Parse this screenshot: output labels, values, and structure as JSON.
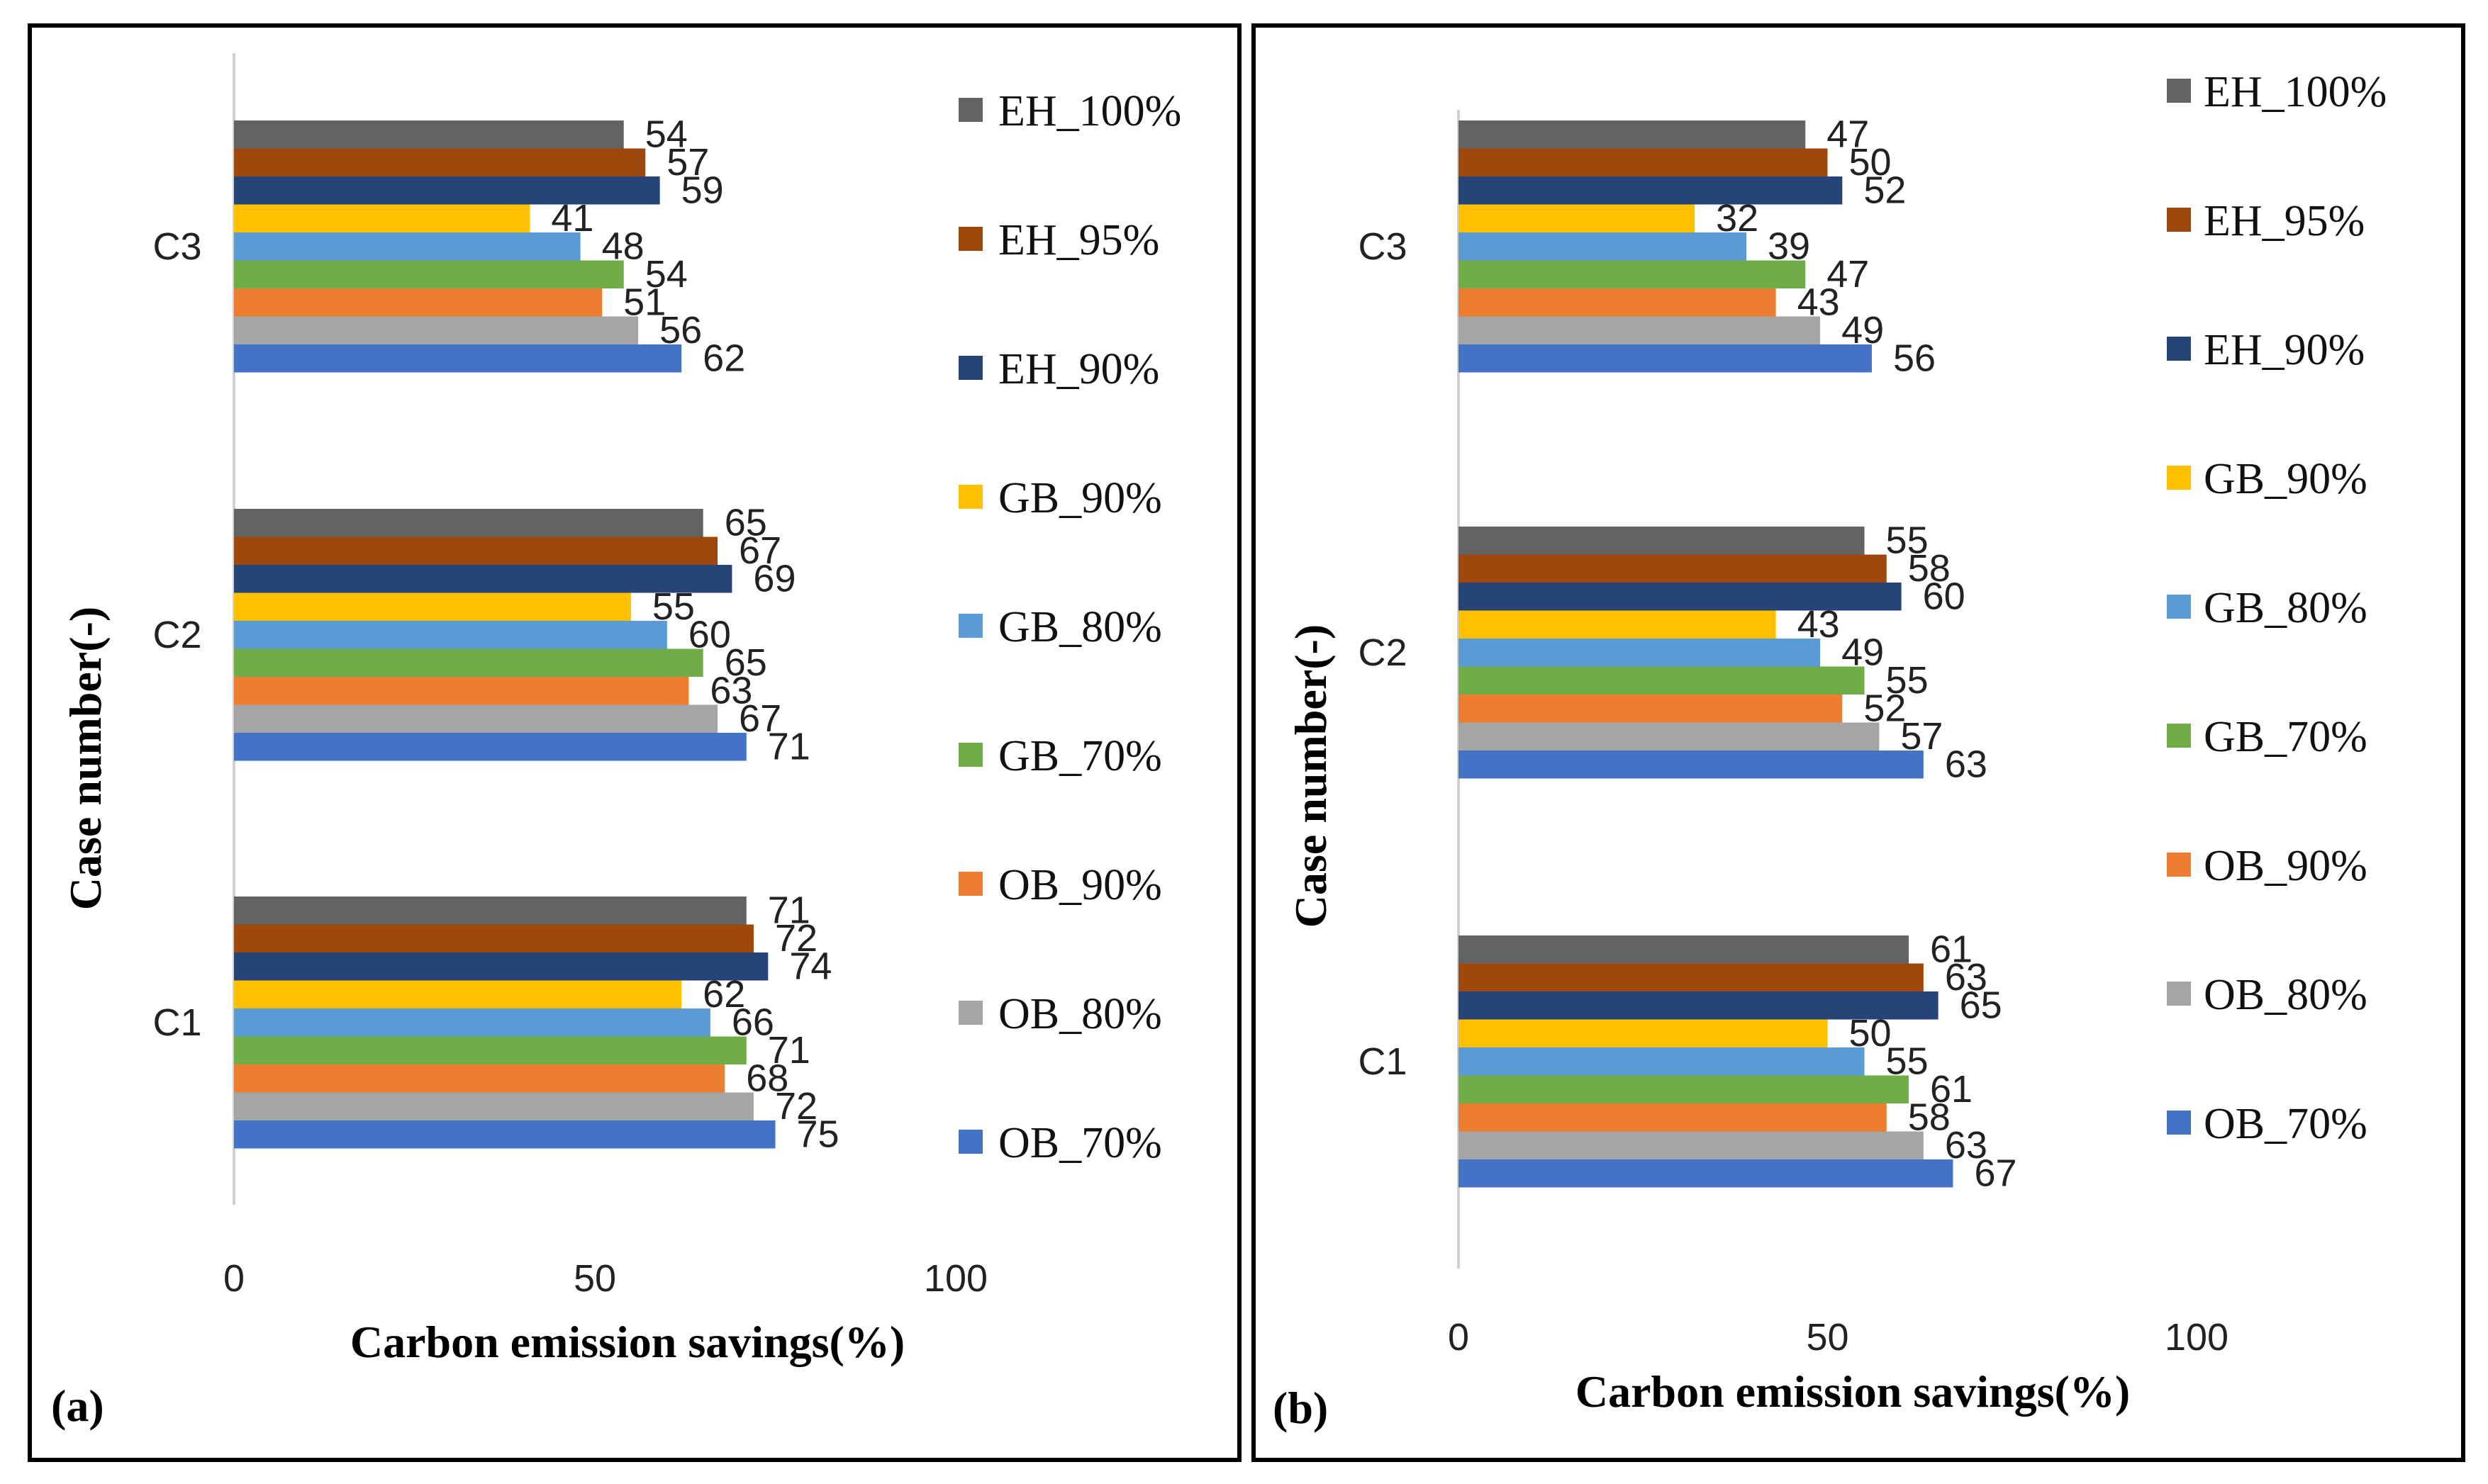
{
  "figure": {
    "legend": [
      {
        "name": "EH_100%",
        "color": "#636363"
      },
      {
        "name": "EH_95%",
        "color": "#9E480E"
      },
      {
        "name": "EH_90%",
        "color": "#264478"
      },
      {
        "name": "GB_90%",
        "color": "#FFC000"
      },
      {
        "name": "GB_80%",
        "color": "#5B9BD5"
      },
      {
        "name": "GB_70%",
        "color": "#70AD47"
      },
      {
        "name": "OB_90%",
        "color": "#ED7D31"
      },
      {
        "name": "OB_80%",
        "color": "#A5A5A5"
      },
      {
        "name": "OB_70%",
        "color": "#4472C4"
      }
    ]
  },
  "chart_data": [
    {
      "type": "bar",
      "orientation": "horizontal",
      "panel_label": "(a)",
      "xlabel": "Carbon emission savings(%)",
      "ylabel": "Case number(-)",
      "xlim": [
        0,
        100
      ],
      "xticks": [
        "0",
        "50",
        "100"
      ],
      "categories": [
        "C3",
        "C2",
        "C1"
      ],
      "series": [
        {
          "name": "EH_100%",
          "values": [
            54,
            65,
            71
          ]
        },
        {
          "name": "EH_95%",
          "values": [
            57,
            67,
            72
          ]
        },
        {
          "name": "EH_90%",
          "values": [
            59,
            69,
            74
          ]
        },
        {
          "name": "GB_90%",
          "values": [
            41,
            55,
            62
          ]
        },
        {
          "name": "GB_80%",
          "values": [
            48,
            60,
            66
          ]
        },
        {
          "name": "GB_70%",
          "values": [
            54,
            65,
            71
          ]
        },
        {
          "name": "OB_90%",
          "values": [
            51,
            63,
            68
          ]
        },
        {
          "name": "OB_80%",
          "values": [
            56,
            67,
            72
          ]
        },
        {
          "name": "OB_70%",
          "values": [
            62,
            71,
            75
          ]
        }
      ]
    },
    {
      "type": "bar",
      "orientation": "horizontal",
      "panel_label": "(b)",
      "xlabel": "Carbon emission savings(%)",
      "ylabel": "Case number(-)",
      "xlim": [
        0,
        100
      ],
      "xticks": [
        "0",
        "50",
        "100"
      ],
      "categories": [
        "C3",
        "C2",
        "C1"
      ],
      "series": [
        {
          "name": "EH_100%",
          "values": [
            47,
            55,
            61
          ]
        },
        {
          "name": "EH_95%",
          "values": [
            50,
            58,
            63
          ]
        },
        {
          "name": "EH_90%",
          "values": [
            52,
            60,
            65
          ]
        },
        {
          "name": "GB_90%",
          "values": [
            32,
            43,
            50
          ]
        },
        {
          "name": "GB_80%",
          "values": [
            39,
            49,
            55
          ]
        },
        {
          "name": "GB_70%",
          "values": [
            47,
            55,
            61
          ]
        },
        {
          "name": "OB_90%",
          "values": [
            43,
            52,
            58
          ]
        },
        {
          "name": "OB_80%",
          "values": [
            49,
            57,
            63
          ]
        },
        {
          "name": "OB_70%",
          "values": [
            56,
            63,
            67
          ]
        }
      ]
    }
  ]
}
